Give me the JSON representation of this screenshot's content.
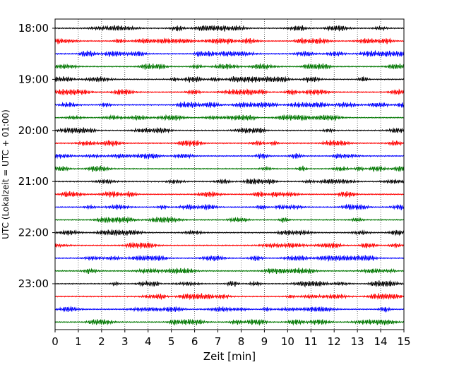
{
  "chart_data": {
    "type": "line",
    "title": "",
    "xlabel": "Zeit  [min]",
    "ylabel": "UTC (Lokalzeit = UTC + 01:00)",
    "xlim": [
      0,
      15
    ],
    "x_ticks": [
      "0",
      "1",
      "2",
      "3",
      "4",
      "5",
      "6",
      "7",
      "8",
      "9",
      "10",
      "11",
      "12",
      "13",
      "14",
      "15"
    ],
    "y_tick_labels": [
      "18:00",
      "19:00",
      "20:00",
      "21:00",
      "22:00",
      "23:00"
    ],
    "y_tick_trace_index": [
      0,
      4,
      8,
      12,
      16,
      20
    ],
    "minutes_per_trace": 15,
    "trace_count": 24,
    "color_cycle": [
      "#000000",
      "#ff0000",
      "#0000ff",
      "#007700"
    ],
    "grid": "vertical dotted lines at each minute",
    "traces": [
      {
        "start": "18:00"
      },
      {
        "start": "18:15"
      },
      {
        "start": "18:30"
      },
      {
        "start": "18:45"
      },
      {
        "start": "19:00"
      },
      {
        "start": "19:15"
      },
      {
        "start": "19:30"
      },
      {
        "start": "19:45"
      },
      {
        "start": "20:00"
      },
      {
        "start": "20:15"
      },
      {
        "start": "20:30"
      },
      {
        "start": "20:45"
      },
      {
        "start": "21:00"
      },
      {
        "start": "21:15"
      },
      {
        "start": "21:30"
      },
      {
        "start": "21:45"
      },
      {
        "start": "22:00"
      },
      {
        "start": "22:15"
      },
      {
        "start": "22:30"
      },
      {
        "start": "22:45"
      },
      {
        "start": "23:00"
      },
      {
        "start": "23:15"
      },
      {
        "start": "23:30"
      },
      {
        "start": "23:45"
      }
    ]
  }
}
